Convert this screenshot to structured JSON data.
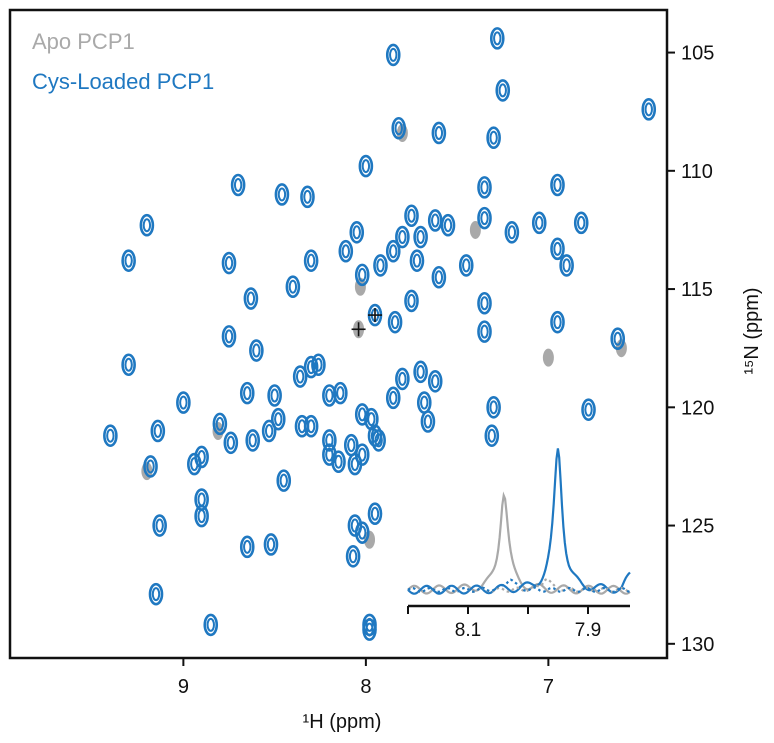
{
  "chart_data": {
    "type": "scatter",
    "xlabel": "¹H (ppm)",
    "ylabel": "¹⁵N (ppm)",
    "xlim": [
      9.95,
      6.35
    ],
    "ylim": [
      103.2,
      130.6
    ],
    "x_ticks": [
      9,
      8,
      7
    ],
    "y_ticks": [
      105,
      110,
      115,
      120,
      125,
      130
    ],
    "x_reversed": true,
    "y_reversed": true,
    "grid": false,
    "legend_position": "top-left",
    "colors": {
      "apo": "#a9a9a9",
      "cys": "#1f78c1",
      "axis": "#111111"
    },
    "series": [
      {
        "name": "Apo PCP1",
        "color": "#a9a9a9",
        "points": [
          [
            7.98,
            125.6
          ],
          [
            8.03,
            114.9
          ],
          [
            9.2,
            122.7
          ],
          [
            8.81,
            121.0
          ],
          [
            7.0,
            117.9
          ],
          [
            7.4,
            112.5
          ],
          [
            7.8,
            108.4
          ],
          [
            6.6,
            117.5
          ],
          [
            8.04,
            116.7
          ]
        ]
      },
      {
        "name": "Cys-Loaded PCP1",
        "color": "#1f78c1",
        "points": [
          [
            7.28,
            104.4
          ],
          [
            7.85,
            105.1
          ],
          [
            7.25,
            106.6
          ],
          [
            6.45,
            107.4
          ],
          [
            7.82,
            108.2
          ],
          [
            7.6,
            108.4
          ],
          [
            8.0,
            109.8
          ],
          [
            7.3,
            108.6
          ],
          [
            8.7,
            110.6
          ],
          [
            8.46,
            111.0
          ],
          [
            8.32,
            111.1
          ],
          [
            7.35,
            110.7
          ],
          [
            6.95,
            110.6
          ],
          [
            9.2,
            112.3
          ],
          [
            8.05,
            112.6
          ],
          [
            7.35,
            112.0
          ],
          [
            7.55,
            112.3
          ],
          [
            7.62,
            112.1
          ],
          [
            7.7,
            112.8
          ],
          [
            7.75,
            111.9
          ],
          [
            7.8,
            112.8
          ],
          [
            7.85,
            113.4
          ],
          [
            7.6,
            114.5
          ],
          [
            7.45,
            114.0
          ],
          [
            7.2,
            112.6
          ],
          [
            7.05,
            112.2
          ],
          [
            6.82,
            112.2
          ],
          [
            6.9,
            114.0
          ],
          [
            6.95,
            113.3
          ],
          [
            8.11,
            113.4
          ],
          [
            8.02,
            114.4
          ],
          [
            7.92,
            114.0
          ],
          [
            7.72,
            113.8
          ],
          [
            9.3,
            113.8
          ],
          [
            8.3,
            113.8
          ],
          [
            8.75,
            113.9
          ],
          [
            8.4,
            114.9
          ],
          [
            8.63,
            115.4
          ],
          [
            7.75,
            115.5
          ],
          [
            7.35,
            115.6
          ],
          [
            7.84,
            116.4
          ],
          [
            7.95,
            116.1
          ],
          [
            6.95,
            116.4
          ],
          [
            6.62,
            117.1
          ],
          [
            7.35,
            116.8
          ],
          [
            8.75,
            117.0
          ],
          [
            8.6,
            117.6
          ],
          [
            8.3,
            118.3
          ],
          [
            8.36,
            118.7
          ],
          [
            8.26,
            118.2
          ],
          [
            9.3,
            118.2
          ],
          [
            7.7,
            118.5
          ],
          [
            7.8,
            118.8
          ],
          [
            7.62,
            118.9
          ],
          [
            7.85,
            119.6
          ],
          [
            8.5,
            119.5
          ],
          [
            8.2,
            119.5
          ],
          [
            8.14,
            119.4
          ],
          [
            9.0,
            119.8
          ],
          [
            8.65,
            119.4
          ],
          [
            7.68,
            119.8
          ],
          [
            7.66,
            120.6
          ],
          [
            7.3,
            120.0
          ],
          [
            6.78,
            120.1
          ],
          [
            8.8,
            120.7
          ],
          [
            8.48,
            120.5
          ],
          [
            8.35,
            120.8
          ],
          [
            8.02,
            120.3
          ],
          [
            7.97,
            120.5
          ],
          [
            9.14,
            121.0
          ],
          [
            8.62,
            121.4
          ],
          [
            8.53,
            121.0
          ],
          [
            8.3,
            120.8
          ],
          [
            8.2,
            121.4
          ],
          [
            8.08,
            121.6
          ],
          [
            7.95,
            121.2
          ],
          [
            7.31,
            121.2
          ],
          [
            9.4,
            121.2
          ],
          [
            8.74,
            121.5
          ],
          [
            8.9,
            122.1
          ],
          [
            8.94,
            122.4
          ],
          [
            9.18,
            122.5
          ],
          [
            8.15,
            122.3
          ],
          [
            8.06,
            122.4
          ],
          [
            8.02,
            122.0
          ],
          [
            8.2,
            122.0
          ],
          [
            7.93,
            121.4
          ],
          [
            8.45,
            123.1
          ],
          [
            8.9,
            123.9
          ],
          [
            8.9,
            124.6
          ],
          [
            7.95,
            124.5
          ],
          [
            9.13,
            125.0
          ],
          [
            8.06,
            125.0
          ],
          [
            8.02,
            125.3
          ],
          [
            8.07,
            126.3
          ],
          [
            8.65,
            125.9
          ],
          [
            8.52,
            125.8
          ],
          [
            9.15,
            127.9
          ],
          [
            8.85,
            129.2
          ],
          [
            7.98,
            129.2
          ],
          [
            7.98,
            129.4
          ]
        ]
      }
    ],
    "annotations": [
      {
        "type": "plus-marker",
        "x": 8.04,
        "y": 116.7
      },
      {
        "type": "plus-marker",
        "x": 7.95,
        "y": 116.1
      }
    ],
    "inset": {
      "type": "line",
      "xlim": [
        8.2,
        7.83
      ],
      "x_ticks": [
        "8.1",
        "7.9"
      ],
      "x_tick_values": [
        8.1,
        7.9
      ],
      "series": [
        {
          "name": "Apo PCP1",
          "color": "#a9a9a9",
          "style": "solid",
          "peak_x": 8.04,
          "peak_height": 1.0
        },
        {
          "name": "Cys-Loaded PCP1",
          "color": "#1f78c1",
          "style": "solid",
          "peak_x": 7.95,
          "peak_height": 1.45
        },
        {
          "name": "Apo PCP1 (dotted)",
          "color": "#a9a9a9",
          "style": "dotted",
          "peak_x": 7.97,
          "peak_height": 0.12
        },
        {
          "name": "Cys-Loaded PCP1 (dotted)",
          "color": "#1f78c1",
          "style": "dotted",
          "peak_x": 8.03,
          "peak_height": 0.12
        }
      ]
    }
  }
}
